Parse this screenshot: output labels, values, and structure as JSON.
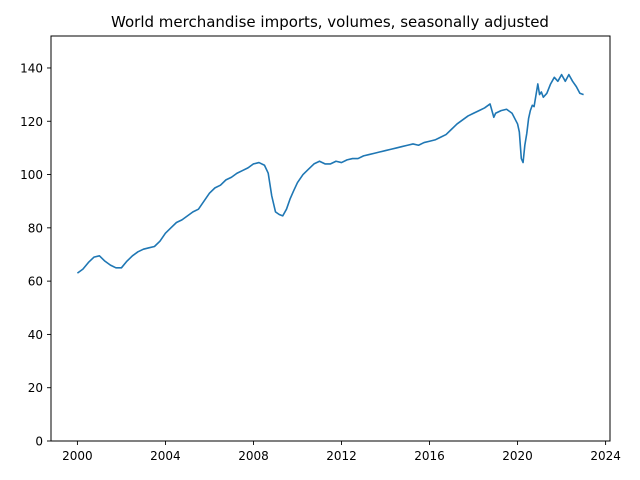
{
  "chart_data": {
    "type": "line",
    "title": "World merchandise imports, volumes, seasonally adjusted",
    "xlabel": "",
    "ylabel": "",
    "xlim": [
      1998.8,
      2024.2
    ],
    "ylim": [
      0,
      152
    ],
    "xticks": [
      2000,
      2004,
      2008,
      2012,
      2016,
      2020,
      2024
    ],
    "xtick_labels": [
      "2000",
      "2004",
      "2008",
      "2012",
      "2016",
      "2020",
      "2024"
    ],
    "yticks": [
      0,
      20,
      40,
      60,
      80,
      100,
      120,
      140
    ],
    "ytick_labels": [
      "0",
      "20",
      "40",
      "60",
      "80",
      "100",
      "120",
      "140"
    ],
    "grid": false,
    "legend": "none",
    "series": [
      {
        "color": "#1f77b4",
        "x": [
          2000.0,
          2000.25,
          2000.5,
          2000.75,
          2001.0,
          2001.25,
          2001.5,
          2001.75,
          2002.0,
          2002.25,
          2002.5,
          2002.75,
          2003.0,
          2003.25,
          2003.5,
          2003.75,
          2004.0,
          2004.25,
          2004.5,
          2004.75,
          2005.0,
          2005.25,
          2005.5,
          2005.75,
          2006.0,
          2006.25,
          2006.5,
          2006.75,
          2007.0,
          2007.25,
          2007.5,
          2007.75,
          2008.0,
          2008.25,
          2008.5,
          2008.67,
          2008.83,
          2009.0,
          2009.17,
          2009.33,
          2009.5,
          2009.67,
          2009.83,
          2010.0,
          2010.25,
          2010.5,
          2010.75,
          2011.0,
          2011.25,
          2011.5,
          2011.75,
          2012.0,
          2012.25,
          2012.5,
          2012.75,
          2013.0,
          2013.25,
          2013.5,
          2013.75,
          2014.0,
          2014.25,
          2014.5,
          2014.75,
          2015.0,
          2015.25,
          2015.5,
          2015.75,
          2016.0,
          2016.25,
          2016.5,
          2016.75,
          2017.0,
          2017.25,
          2017.5,
          2017.75,
          2018.0,
          2018.25,
          2018.5,
          2018.75,
          2018.92,
          2019.0,
          2019.25,
          2019.5,
          2019.75,
          2020.0,
          2020.08,
          2020.17,
          2020.25,
          2020.33,
          2020.42,
          2020.5,
          2020.58,
          2020.67,
          2020.75,
          2020.92,
          2021.0,
          2021.08,
          2021.17,
          2021.33,
          2021.5,
          2021.67,
          2021.83,
          2022.0,
          2022.17,
          2022.33,
          2022.5,
          2022.67,
          2022.83,
          2023.0
        ],
        "values": [
          63,
          64.5,
          67,
          69,
          69.5,
          67.5,
          66,
          65,
          65,
          67.5,
          69.5,
          71,
          72,
          72.5,
          73,
          75,
          78,
          80,
          82,
          83,
          84.5,
          86,
          87,
          90,
          93,
          95,
          96,
          98,
          99,
          100.5,
          101.5,
          102.5,
          104,
          104.5,
          103.5,
          100.5,
          92,
          86,
          85,
          84.5,
          87,
          91,
          94,
          97,
          100,
          102,
          104,
          105,
          104,
          104,
          105,
          104.5,
          105.5,
          106,
          106,
          107,
          107.5,
          108,
          108.5,
          109,
          109.5,
          110,
          110.5,
          111,
          111.5,
          111,
          112,
          112.5,
          113,
          114,
          115,
          117,
          119,
          120.5,
          122,
          123,
          124,
          125,
          126.5,
          121.5,
          123,
          124,
          124.5,
          123,
          119,
          116,
          106,
          104.5,
          111,
          115.5,
          121,
          124,
          126,
          125.5,
          134,
          130,
          131,
          129,
          130.5,
          134,
          136.5,
          135,
          137.5,
          135,
          137.5,
          135,
          133,
          130.5,
          130
        ]
      }
    ]
  }
}
